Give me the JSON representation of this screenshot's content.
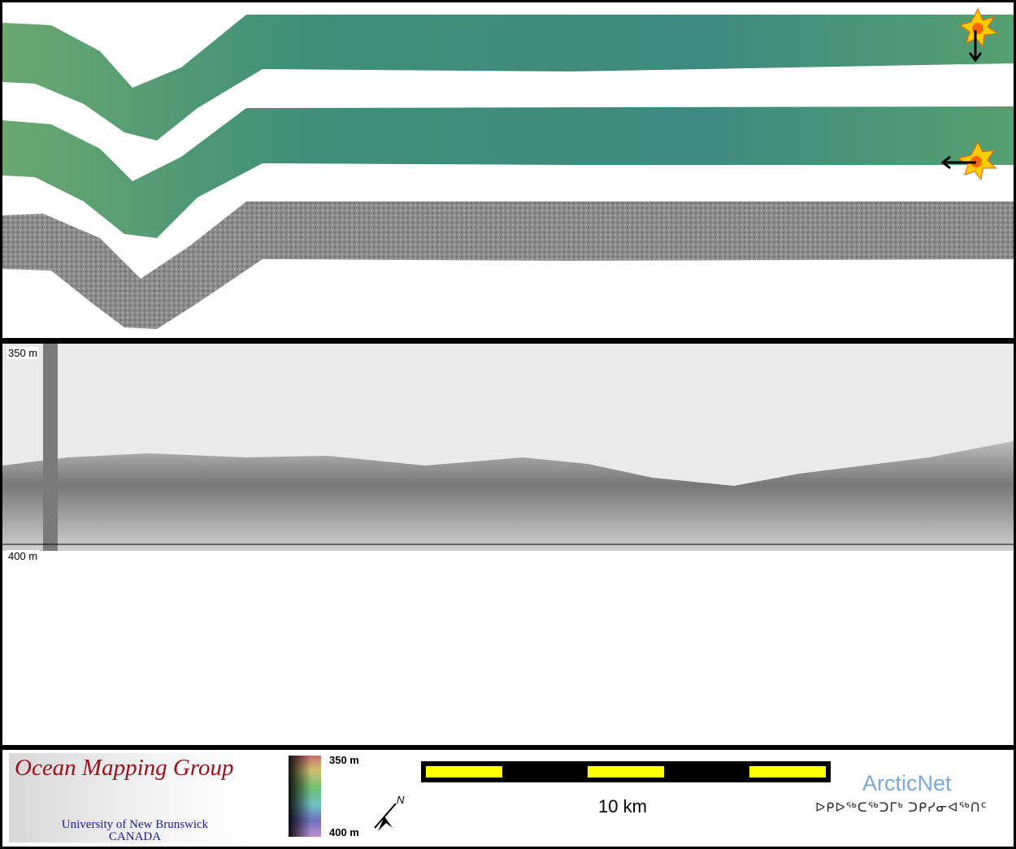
{
  "profile": {
    "top_depth_label": "350 m",
    "bottom_depth_label": "400 m"
  },
  "legend": {
    "logo": {
      "title": "Ocean Mapping Group",
      "line1": "University of New Brunswick",
      "line2": "CANADA"
    },
    "colorbar": {
      "top_label": "350 m",
      "bottom_label": "400 m"
    },
    "north_arrow": "N",
    "scale_label": "10 km",
    "partner": {
      "name": "ArcticNet",
      "syllabics": "ᐅᑭᐅᖅᑕᖅᑐᒥᒃ ᑐᑭᓯᓂᐊᖅᑎᑦ"
    }
  },
  "colors": {
    "swath_color": "#3f8f78",
    "backscatter": "#8a8a8a",
    "scale_yellow": "#ffff00",
    "omg_red": "#a0101a",
    "arcticnet_blue": "#7aa8d8"
  },
  "icons": [
    "sun-illumination-icon",
    "arrow-down-icon",
    "arrow-left-icon",
    "north-arrow-icon"
  ]
}
